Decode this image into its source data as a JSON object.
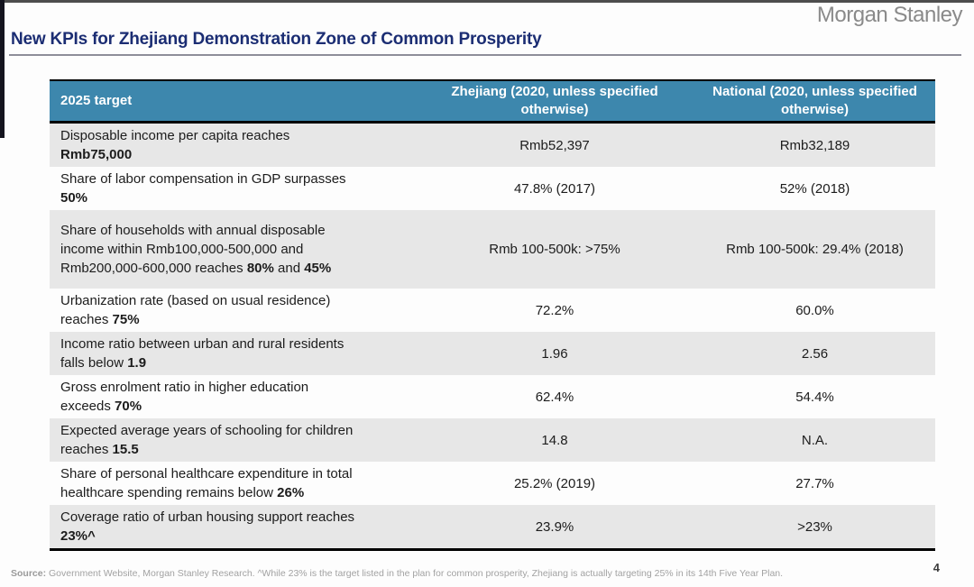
{
  "brand": {
    "logo": "Morgan Stanley"
  },
  "page": {
    "title": "New KPIs for Zhejiang Demonstration Zone of Common Prosperity",
    "number": "4"
  },
  "colors": {
    "header_bg": "#3d87ad",
    "row_alt_bg": "#e7e7e7",
    "title_text": "#1b2d73",
    "header_text": "#ffffff"
  },
  "table": {
    "headers": [
      "2025 target",
      "Zhejiang (2020, unless specified otherwise)",
      "National (2020, unless specified otherwise)"
    ],
    "rows": [
      {
        "target_lines": [
          [
            {
              "t": "Disposable income per capita reaches",
              "b": false
            }
          ],
          [
            {
              "t": "Rmb75,000",
              "b": true
            }
          ]
        ],
        "zhejiang": "Rmb52,397",
        "national": "Rmb32,189"
      },
      {
        "target_lines": [
          [
            {
              "t": "Share of labor compensation in GDP surpasses",
              "b": false
            }
          ],
          [
            {
              "t": "50%",
              "b": true
            }
          ]
        ],
        "zhejiang": "47.8% (2017)",
        "national": "52% (2018)"
      },
      {
        "target_lines": [
          [
            {
              "t": "Share of households with annual disposable",
              "b": false
            }
          ],
          [
            {
              "t": "income within Rmb100,000-500,000 and",
              "b": false
            }
          ],
          [
            {
              "t": "Rmb200,000-600,000 reaches ",
              "b": false
            },
            {
              "t": "80%",
              "b": true
            },
            {
              "t": " and ",
              "b": false
            },
            {
              "t": "45%",
              "b": true
            }
          ]
        ],
        "zhejiang": "Rmb 100-500k: >75%",
        "national": "Rmb 100-500k: 29.4% (2018)",
        "tall": true
      },
      {
        "target_lines": [
          [
            {
              "t": "Urbanization rate (based on usual residence)",
              "b": false
            }
          ],
          [
            {
              "t": "reaches ",
              "b": false
            },
            {
              "t": "75%",
              "b": true
            }
          ]
        ],
        "zhejiang": "72.2%",
        "national": "60.0%"
      },
      {
        "target_lines": [
          [
            {
              "t": "Income ratio between urban and rural residents",
              "b": false
            }
          ],
          [
            {
              "t": "falls below ",
              "b": false
            },
            {
              "t": "1.9",
              "b": true
            }
          ]
        ],
        "zhejiang": "1.96",
        "national": "2.56"
      },
      {
        "target_lines": [
          [
            {
              "t": "Gross enrolment ratio in higher education",
              "b": false
            }
          ],
          [
            {
              "t": "exceeds ",
              "b": false
            },
            {
              "t": "70%",
              "b": true
            }
          ]
        ],
        "zhejiang": "62.4%",
        "national": "54.4%"
      },
      {
        "target_lines": [
          [
            {
              "t": "Expected average years of schooling for children",
              "b": false
            }
          ],
          [
            {
              "t": "reaches ",
              "b": false
            },
            {
              "t": "15.5",
              "b": true
            }
          ]
        ],
        "zhejiang": "14.8",
        "national": "N.A."
      },
      {
        "target_lines": [
          [
            {
              "t": "Share of personal healthcare expenditure in total",
              "b": false
            }
          ],
          [
            {
              "t": "healthcare spending remains below ",
              "b": false
            },
            {
              "t": "26%",
              "b": true
            }
          ]
        ],
        "zhejiang": "25.2% (2019)",
        "national": "27.7%"
      },
      {
        "target_lines": [
          [
            {
              "t": "Coverage ratio of urban housing support reaches",
              "b": false
            }
          ],
          [
            {
              "t": "23%^",
              "b": true
            }
          ]
        ],
        "zhejiang": "23.9%",
        "national": ">23%"
      }
    ]
  },
  "footer": {
    "source_label": "Source:",
    "source_text": " Government Website, Morgan Stanley Research. ^While 23% is the target listed in the plan for common prosperity, Zhejiang is actually targeting 25% in its 14th Five Year Plan."
  }
}
